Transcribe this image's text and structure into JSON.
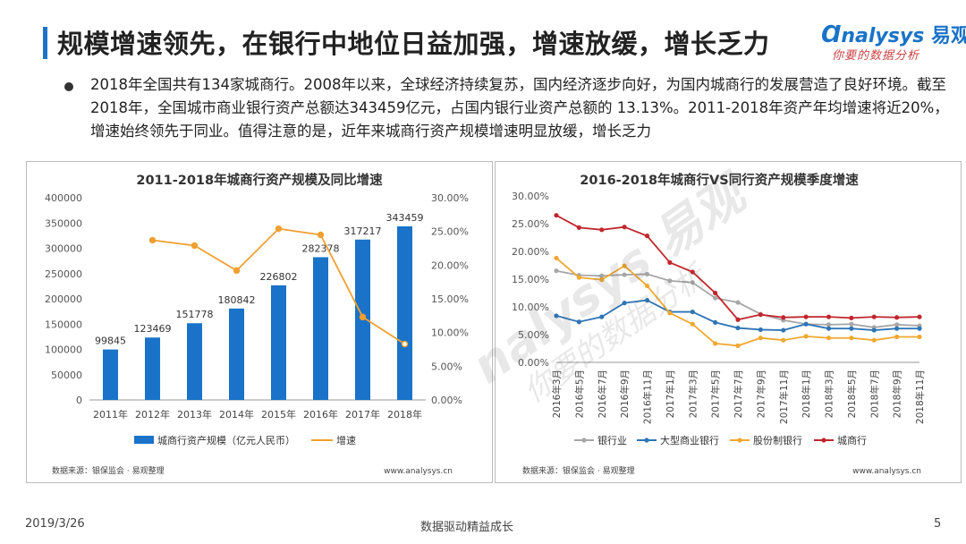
{
  "header": {
    "title": "规模增速领先，在银行中地位日益加强，增速放缓，增长乏力",
    "logo_brand": "nalysys",
    "logo_brand_cn": "易观",
    "logo_tagline": "你要的数据分析",
    "accent": "#1a73c8"
  },
  "body": {
    "paragraph": "2018年全国共有134家城商行。2008年以来，全球经济持续复苏，国内经济逐步向好，为国内城商行的发展营造了良好环境。截至2018年，全国城市商业银行资产总额达343459亿元，占国内银行业资产总额的 13.13%。2011-2018年资产年均增速将近20%，增速始终领先于同业。值得注意的是，近年来城商行资产规模增速明显放缓，增长乏力"
  },
  "footer": {
    "date": "2019/3/26",
    "center": "数据驱动精益成长",
    "page": "5"
  },
  "chart_data": [
    {
      "type": "bar",
      "title": "2011-2018年城商行资产规模及同比增速",
      "categories": [
        "2011年",
        "2012年",
        "2013年",
        "2014年",
        "2015年",
        "2016年",
        "2017年",
        "2018年"
      ],
      "series": [
        {
          "name": "城商行资产规模（亿元人民币）",
          "type": "bar",
          "axis": "left",
          "color": "#1a73c8",
          "values": [
            99845,
            123469,
            151778,
            180842,
            226802,
            282378,
            317217,
            343459
          ]
        },
        {
          "name": "增速",
          "type": "line",
          "axis": "right",
          "color": "#f0a030",
          "values": [
            null,
            23.7,
            22.9,
            19.2,
            25.4,
            24.5,
            12.3,
            8.3
          ]
        }
      ],
      "ylim_left": [
        0,
        400000
      ],
      "yticks_left": [
        "0",
        "50000",
        "100000",
        "150000",
        "200000",
        "250000",
        "300000",
        "350000",
        "400000"
      ],
      "ylim_right": [
        0,
        30
      ],
      "yticks_right": [
        "0.00%",
        "5.00%",
        "10.00%",
        "15.00%",
        "20.00%",
        "25.00%",
        "30.00%"
      ],
      "source": "数据来源：银保监会 · 易观整理",
      "site": "www.analysys.cn"
    },
    {
      "type": "line",
      "title": "2016-2018年城商行VS同行资产规模季度增速",
      "categories": [
        "2016年3月",
        "2016年5月",
        "2016年7月",
        "2016年9月",
        "2016年11月",
        "2017年1月",
        "2017年3月",
        "2017年5月",
        "2017年7月",
        "2017年9月",
        "2017年11月",
        "2018年1月",
        "2018年3月",
        "2018年5月",
        "2018年7月",
        "2018年9月",
        "2018年11月"
      ],
      "series": [
        {
          "name": "银行业",
          "color": "#a6a6a6",
          "values": [
            16.5,
            15.7,
            15.6,
            15.8,
            15.9,
            14.7,
            14.4,
            11.6,
            10.8,
            8.7,
            7.6,
            6.9,
            6.8,
            6.9,
            6.3,
            6.8,
            6.6
          ]
        },
        {
          "name": "大型商业银行",
          "color": "#2e75b6",
          "values": [
            8.4,
            7.3,
            8.2,
            10.7,
            11.2,
            9.1,
            9.1,
            7.2,
            6.2,
            5.9,
            5.8,
            6.9,
            6.1,
            6.1,
            5.8,
            6.1,
            6.1
          ]
        },
        {
          "name": "股份制银行",
          "color": "#f0a830",
          "values": [
            18.8,
            15.3,
            14.9,
            17.4,
            13.8,
            8.9,
            6.9,
            3.4,
            3.0,
            4.4,
            4.0,
            4.7,
            4.4,
            4.4,
            4.0,
            4.6,
            4.6
          ]
        },
        {
          "name": "城商行",
          "color": "#c0272d",
          "values": [
            26.5,
            24.3,
            23.9,
            24.4,
            22.8,
            18.0,
            16.3,
            12.5,
            7.7,
            8.6,
            8.1,
            8.2,
            8.2,
            8.0,
            8.2,
            8.1,
            8.2
          ]
        }
      ],
      "ylim": [
        0,
        30
      ],
      "yticks": [
        "0.00%",
        "5.00%",
        "10.00%",
        "15.00%",
        "20.00%",
        "25.00%",
        "30.00%"
      ],
      "source": "数据来源：银保监会 · 易观整理",
      "site": "www.analysys.cn"
    }
  ]
}
